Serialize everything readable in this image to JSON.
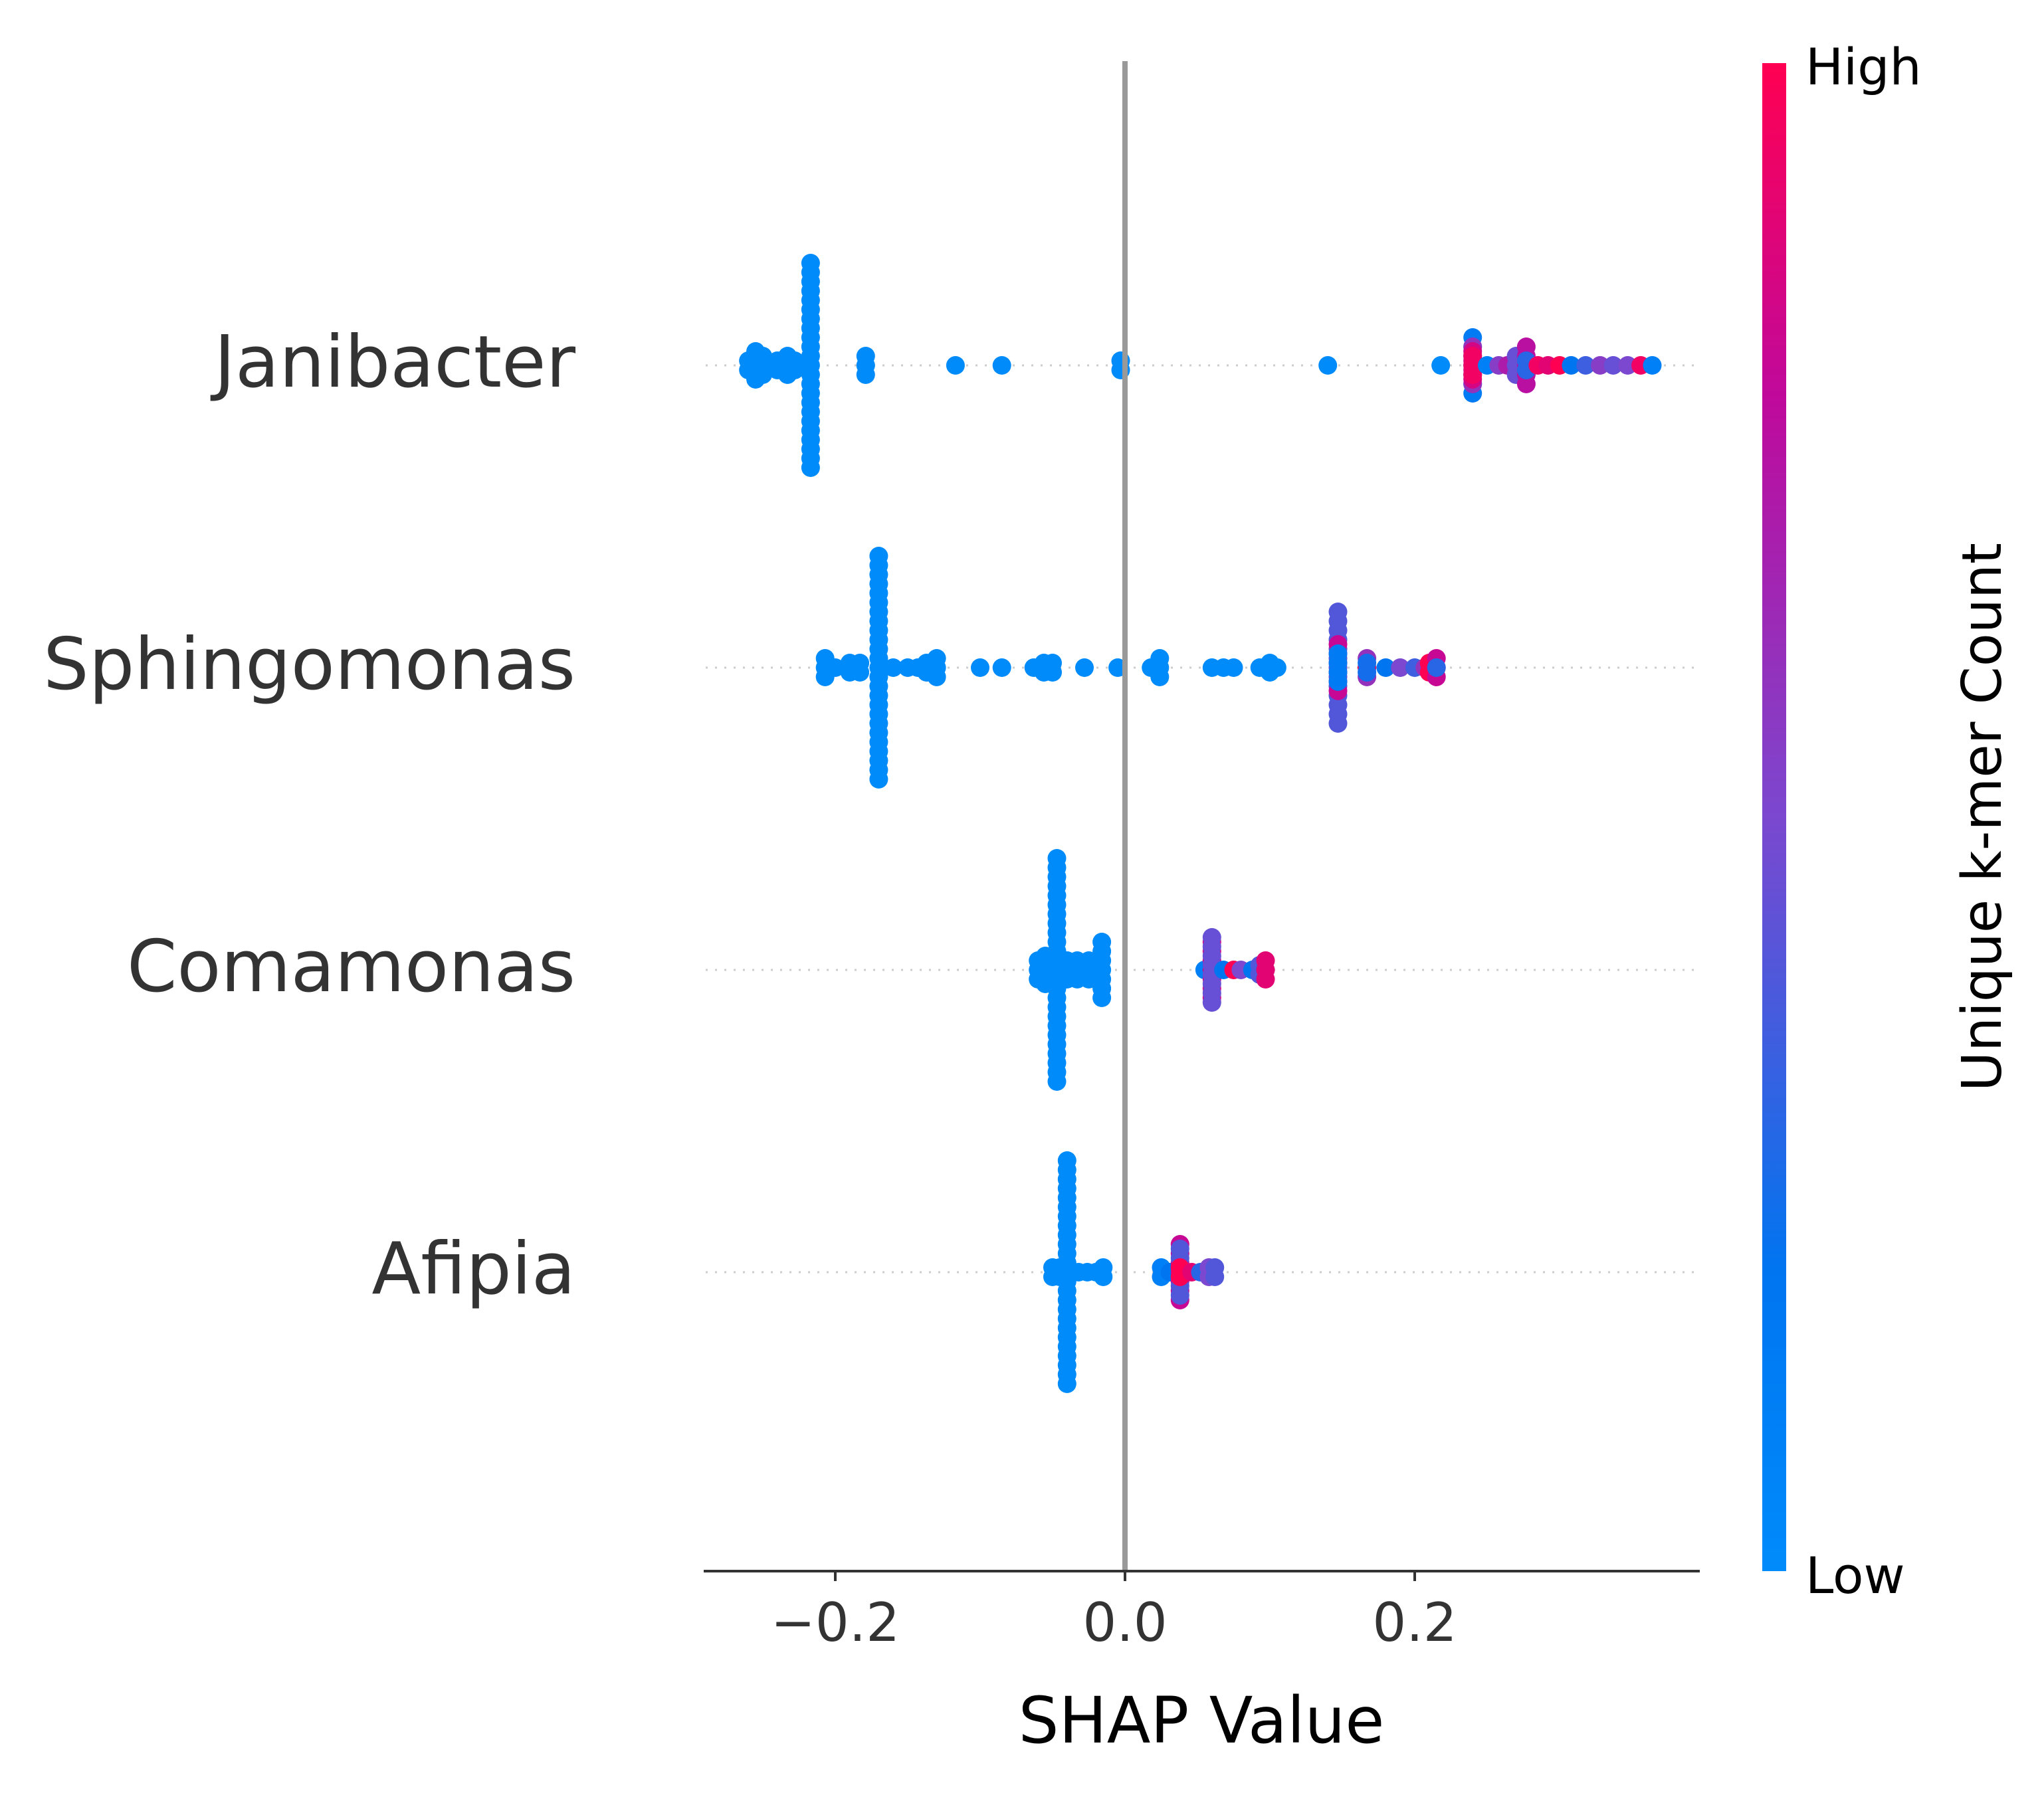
{
  "chart_data": {
    "type": "scatter",
    "subtype": "shap_beeswarm",
    "title": "",
    "xlabel": "SHAP Value",
    "ylabel": "",
    "xlim": [
      -0.29,
      0.39
    ],
    "xticks": [
      -0.2,
      0.0,
      0.2
    ],
    "xtick_labels": [
      "−0.2",
      "0.0",
      "0.2"
    ],
    "zero_line": true,
    "grid": false,
    "colorbar": {
      "label": "Unique k-mer Count",
      "high_label": "High",
      "low_label": "Low",
      "low_color": "#008bfb",
      "high_color": "#ff0052"
    },
    "features": [
      {
        "name": "Janibacter",
        "points": [
          {
            "x": -0.26,
            "v": 0.0,
            "n": 2
          },
          {
            "x": -0.255,
            "v": 0.0,
            "n": 4
          },
          {
            "x": -0.25,
            "v": 0.0,
            "n": 3
          },
          {
            "x": -0.24,
            "v": 0.0,
            "n": 2
          },
          {
            "x": -0.233,
            "v": 0.0,
            "n": 3
          },
          {
            "x": -0.228,
            "v": 0.0,
            "n": 2
          },
          {
            "x": -0.217,
            "v": 0.0,
            "n": 23
          },
          {
            "x": -0.179,
            "v": 0.0,
            "n": 3
          },
          {
            "x": -0.117,
            "v": 0.0,
            "n": 1
          },
          {
            "x": -0.085,
            "v": 0.0,
            "n": 1
          },
          {
            "x": -0.003,
            "v": 0.0,
            "n": 2
          },
          {
            "x": 0.14,
            "v": 0.0,
            "n": 1
          },
          {
            "x": 0.218,
            "v": 0.0,
            "n": 1
          },
          {
            "x": 0.24,
            "v": 0.15,
            "n": 7
          },
          {
            "x": 0.24,
            "v": 0.6,
            "n": 5
          },
          {
            "x": 0.24,
            "v": 0.85,
            "n": 4
          },
          {
            "x": 0.24,
            "v": 0.95,
            "n": 3
          },
          {
            "x": 0.25,
            "v": 0.1,
            "n": 1
          },
          {
            "x": 0.258,
            "v": 0.55,
            "n": 1
          },
          {
            "x": 0.264,
            "v": 0.7,
            "n": 1
          },
          {
            "x": 0.27,
            "v": 0.45,
            "n": 3
          },
          {
            "x": 0.277,
            "v": 0.75,
            "n": 5
          },
          {
            "x": 0.277,
            "v": 0.3,
            "n": 2
          },
          {
            "x": 0.285,
            "v": 0.95,
            "n": 1
          },
          {
            "x": 0.292,
            "v": 0.9,
            "n": 1
          },
          {
            "x": 0.3,
            "v": 1.0,
            "n": 1
          },
          {
            "x": 0.308,
            "v": 0.2,
            "n": 1
          },
          {
            "x": 0.318,
            "v": 0.35,
            "n": 1
          },
          {
            "x": 0.328,
            "v": 0.55,
            "n": 1
          },
          {
            "x": 0.337,
            "v": 0.45,
            "n": 1
          },
          {
            "x": 0.347,
            "v": 0.5,
            "n": 1
          },
          {
            "x": 0.356,
            "v": 0.95,
            "n": 1
          },
          {
            "x": 0.364,
            "v": 0.1,
            "n": 1
          }
        ]
      },
      {
        "name": "Sphingomonas",
        "points": [
          {
            "x": -0.207,
            "v": 0.0,
            "n": 3
          },
          {
            "x": -0.2,
            "v": 0.0,
            "n": 1
          },
          {
            "x": -0.19,
            "v": 0.0,
            "n": 2
          },
          {
            "x": -0.183,
            "v": 0.0,
            "n": 2
          },
          {
            "x": -0.17,
            "v": 0.0,
            "n": 25
          },
          {
            "x": -0.16,
            "v": 0.0,
            "n": 1
          },
          {
            "x": -0.15,
            "v": 0.0,
            "n": 1
          },
          {
            "x": -0.143,
            "v": 0.0,
            "n": 1
          },
          {
            "x": -0.137,
            "v": 0.0,
            "n": 2
          },
          {
            "x": -0.13,
            "v": 0.0,
            "n": 3
          },
          {
            "x": -0.1,
            "v": 0.0,
            "n": 1
          },
          {
            "x": -0.085,
            "v": 0.0,
            "n": 1
          },
          {
            "x": -0.063,
            "v": 0.0,
            "n": 1
          },
          {
            "x": -0.056,
            "v": 0.0,
            "n": 2
          },
          {
            "x": -0.05,
            "v": 0.0,
            "n": 2
          },
          {
            "x": -0.028,
            "v": 0.0,
            "n": 1
          },
          {
            "x": -0.005,
            "v": 0.0,
            "n": 1
          },
          {
            "x": 0.018,
            "v": 0.0,
            "n": 1
          },
          {
            "x": 0.024,
            "v": 0.0,
            "n": 3
          },
          {
            "x": 0.06,
            "v": 0.0,
            "n": 1
          },
          {
            "x": 0.068,
            "v": 0.0,
            "n": 1
          },
          {
            "x": 0.075,
            "v": 0.0,
            "n": 1
          },
          {
            "x": 0.093,
            "v": 0.0,
            "n": 1
          },
          {
            "x": 0.1,
            "v": 0.0,
            "n": 2
          },
          {
            "x": 0.105,
            "v": 0.0,
            "n": 1
          },
          {
            "x": 0.147,
            "v": 0.4,
            "n": 13
          },
          {
            "x": 0.147,
            "v": 0.8,
            "n": 6
          },
          {
            "x": 0.147,
            "v": 0.15,
            "n": 4
          },
          {
            "x": 0.167,
            "v": 0.6,
            "n": 3
          },
          {
            "x": 0.167,
            "v": 1.0,
            "n": 1
          },
          {
            "x": 0.167,
            "v": 0.25,
            "n": 2
          },
          {
            "x": 0.18,
            "v": 0.2,
            "n": 1
          },
          {
            "x": 0.19,
            "v": 0.5,
            "n": 1
          },
          {
            "x": 0.2,
            "v": 0.35,
            "n": 1
          },
          {
            "x": 0.207,
            "v": 0.6,
            "n": 1
          },
          {
            "x": 0.21,
            "v": 1.0,
            "n": 2
          },
          {
            "x": 0.215,
            "v": 0.8,
            "n": 3
          },
          {
            "x": 0.215,
            "v": 0.3,
            "n": 1
          }
        ]
      },
      {
        "name": "Comamonas",
        "points": [
          {
            "x": -0.06,
            "v": 0.0,
            "n": 3
          },
          {
            "x": -0.055,
            "v": 0.0,
            "n": 4
          },
          {
            "x": -0.047,
            "v": 0.0,
            "n": 25
          },
          {
            "x": -0.04,
            "v": 0.0,
            "n": 3
          },
          {
            "x": -0.033,
            "v": 0.0,
            "n": 3
          },
          {
            "x": -0.025,
            "v": 0.0,
            "n": 3
          },
          {
            "x": -0.016,
            "v": 0.0,
            "n": 7
          },
          {
            "x": 0.055,
            "v": 0.1,
            "n": 1
          },
          {
            "x": 0.06,
            "v": 0.85,
            "n": 7
          },
          {
            "x": 0.06,
            "v": 0.45,
            "n": 8
          },
          {
            "x": 0.068,
            "v": 0.2,
            "n": 1
          },
          {
            "x": 0.075,
            "v": 1.0,
            "n": 1
          },
          {
            "x": 0.08,
            "v": 0.5,
            "n": 1
          },
          {
            "x": 0.088,
            "v": 0.2,
            "n": 1
          },
          {
            "x": 0.093,
            "v": 0.4,
            "n": 2
          },
          {
            "x": 0.097,
            "v": 0.9,
            "n": 3
          }
        ]
      },
      {
        "name": "Afipia",
        "points": [
          {
            "x": -0.05,
            "v": 0.0,
            "n": 2
          },
          {
            "x": -0.045,
            "v": 0.0,
            "n": 2
          },
          {
            "x": -0.04,
            "v": 0.0,
            "n": 25
          },
          {
            "x": -0.032,
            "v": 0.0,
            "n": 1
          },
          {
            "x": -0.026,
            "v": 0.0,
            "n": 1
          },
          {
            "x": -0.02,
            "v": 0.0,
            "n": 1
          },
          {
            "x": -0.015,
            "v": 0.0,
            "n": 2
          },
          {
            "x": 0.025,
            "v": 0.1,
            "n": 2
          },
          {
            "x": 0.031,
            "v": 0.2,
            "n": 1
          },
          {
            "x": 0.038,
            "v": 0.8,
            "n": 7
          },
          {
            "x": 0.038,
            "v": 0.4,
            "n": 6
          },
          {
            "x": 0.038,
            "v": 1.0,
            "n": 2
          },
          {
            "x": 0.046,
            "v": 0.9,
            "n": 1
          },
          {
            "x": 0.052,
            "v": 0.3,
            "n": 1
          },
          {
            "x": 0.058,
            "v": 0.5,
            "n": 2
          },
          {
            "x": 0.062,
            "v": 0.4,
            "n": 2
          }
        ]
      }
    ]
  }
}
